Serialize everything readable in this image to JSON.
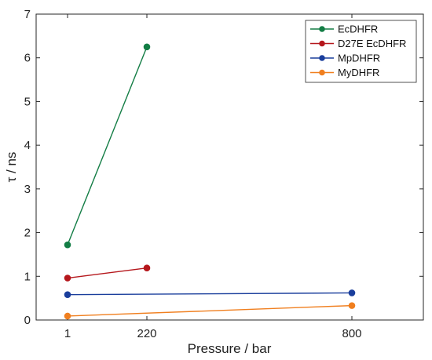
{
  "chart_data": {
    "type": "line",
    "xlabel": "Pressure / bar",
    "ylabel": "τ / ns",
    "xlim": [
      1,
      800
    ],
    "ylim": [
      0,
      7
    ],
    "x_ticks": [
      {
        "value": 1,
        "label": "1"
      },
      {
        "value": 220,
        "label": "220"
      },
      {
        "value": 800,
        "label": "800"
      }
    ],
    "y_ticks": [
      0,
      1,
      2,
      3,
      4,
      5,
      6,
      7
    ],
    "grid": false,
    "legend_position": "top-right",
    "series": [
      {
        "name": "EcDHFR",
        "color": "#137d45",
        "points": [
          {
            "x": 1,
            "y": 1.72
          },
          {
            "x": 220,
            "y": 6.25
          }
        ]
      },
      {
        "name": "D27E EcDHFR",
        "color": "#b5171c",
        "points": [
          {
            "x": 1,
            "y": 0.96
          },
          {
            "x": 220,
            "y": 1.19
          }
        ]
      },
      {
        "name": "MpDHFR",
        "color": "#1a3e9c",
        "points": [
          {
            "x": 1,
            "y": 0.58
          },
          {
            "x": 800,
            "y": 0.62
          }
        ]
      },
      {
        "name": "MyDHFR",
        "color": "#f07f1f",
        "points": [
          {
            "x": 1,
            "y": 0.09
          },
          {
            "x": 800,
            "y": 0.33
          }
        ]
      }
    ]
  }
}
